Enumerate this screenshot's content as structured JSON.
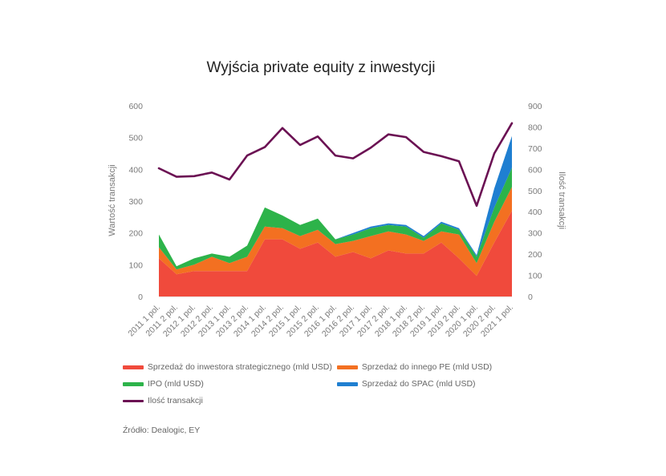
{
  "chart_data": {
    "type": "area",
    "title": "Wyjścia private equity z inwestycji",
    "ylabel": "Wartość transakcji",
    "y2label": "Ilość transakcji",
    "ylim": [
      0,
      600
    ],
    "y2lim": [
      0,
      900
    ],
    "yticks": [
      "0",
      "100",
      "200",
      "300",
      "400",
      "500",
      "600"
    ],
    "y2ticks": [
      "0",
      "100",
      "200",
      "300",
      "400",
      "500",
      "600",
      "700",
      "800",
      "900"
    ],
    "categories": [
      "2011 1 pol.",
      "2011 2 pol.",
      "2012 1 pol.",
      "2012 2 pol.",
      "2013 1 pol.",
      "2013 2 pol.",
      "2014 1 pol.",
      "2014 2 pol.",
      "2015 1 pol.",
      "2015 2 pol.",
      "2016 1 pol.",
      "2016 2 pol.",
      "2017 1 pol.",
      "2017 2 pol.",
      "2018 1 pol.",
      "2018 2 pol.",
      "2019 1 pol.",
      "2019 2 pol.",
      "2020 1 pol.",
      "2020 2 pol.",
      "2021 1 pol."
    ],
    "series": [
      {
        "name": "Sprzedaż do inwestora strategicznego (mld USD)",
        "color": "#f04a3c",
        "axis": "left",
        "kind": "area",
        "values": [
          120,
          70,
          80,
          80,
          80,
          80,
          180,
          180,
          150,
          170,
          125,
          140,
          120,
          145,
          135,
          135,
          170,
          120,
          65,
          170,
          270
        ]
      },
      {
        "name": "Sprzedaż do innego PE (mld USD)",
        "color": "#f37021",
        "axis": "left",
        "kind": "area",
        "values": [
          35,
          15,
          20,
          45,
          25,
          45,
          40,
          35,
          40,
          40,
          40,
          35,
          70,
          60,
          60,
          40,
          35,
          75,
          40,
          65,
          75
        ]
      },
      {
        "name": "IPO (mld USD)",
        "color": "#2db34a",
        "axis": "left",
        "kind": "area",
        "values": [
          40,
          10,
          20,
          10,
          20,
          35,
          60,
          40,
          35,
          35,
          15,
          20,
          25,
          20,
          25,
          10,
          25,
          15,
          20,
          45,
          60
        ]
      },
      {
        "name": "Sprzedaż do SPAC (mld USD)",
        "color": "#1f7fd1",
        "axis": "left",
        "kind": "area",
        "values": [
          0,
          0,
          0,
          0,
          0,
          0,
          0,
          0,
          0,
          0,
          0,
          5,
          5,
          5,
          5,
          5,
          5,
          5,
          5,
          60,
          100
        ]
      },
      {
        "name": "Ilość transakcji",
        "color": "#6b1153",
        "axis": "right",
        "kind": "line",
        "values": [
          605,
          565,
          568,
          585,
          552,
          665,
          705,
          795,
          715,
          755,
          665,
          652,
          702,
          765,
          752,
          682,
          662,
          638,
          428,
          675,
          818
        ]
      }
    ]
  },
  "source": "Źródło: Dealogic, EY"
}
